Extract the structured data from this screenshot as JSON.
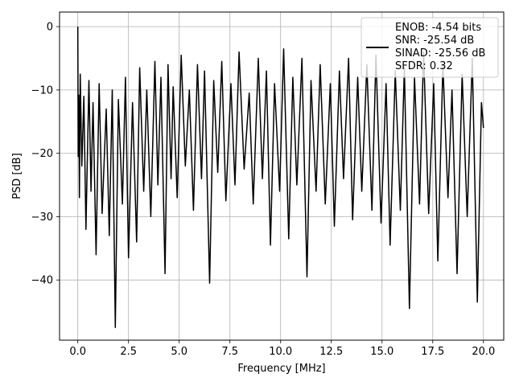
{
  "chart_data": {
    "type": "line",
    "title": "",
    "xlabel": "Frequency [MHz]",
    "ylabel": "PSD [dB]",
    "xlim": [
      -0.9,
      21.0
    ],
    "ylim": [
      -49.5,
      2.3
    ],
    "xticks": [
      0.0,
      2.5,
      5.0,
      7.5,
      10.0,
      12.5,
      15.0,
      17.5,
      20.0
    ],
    "xtick_labels": [
      "0.0",
      "2.5",
      "5.0",
      "7.5",
      "10.0",
      "12.5",
      "15.0",
      "17.5",
      "20.0"
    ],
    "yticks": [
      0,
      -10,
      -20,
      -30,
      -40
    ],
    "ytick_labels": [
      "0",
      "−10",
      "−20",
      "−30",
      "−40"
    ],
    "grid": true,
    "legend_location": "upper right",
    "legend_lines": [
      "ENOB: -4.54 bits",
      "SNR: -25.54 dB",
      "SINAD: -25.56 dB",
      "SFDR: 0.32"
    ],
    "line_color": "#000000",
    "series": [
      {
        "x": [
          0.0,
          0.02,
          0.05,
          0.08,
          0.12,
          0.2,
          0.3,
          0.4,
          0.55,
          0.65,
          0.75,
          0.9,
          1.05,
          1.2,
          1.4,
          1.55,
          1.7,
          1.85,
          2.0,
          2.2,
          2.35,
          2.5,
          2.7,
          2.9,
          3.05,
          3.25,
          3.4,
          3.6,
          3.8,
          3.95,
          4.1,
          4.3,
          4.45,
          4.6,
          4.7,
          4.9,
          5.1,
          5.3,
          5.5,
          5.7,
          5.9,
          6.1,
          6.25,
          6.5,
          6.7,
          6.9,
          7.1,
          7.3,
          7.55,
          7.75,
          7.95,
          8.2,
          8.45,
          8.65,
          8.9,
          9.1,
          9.3,
          9.5,
          9.7,
          9.95,
          10.15,
          10.4,
          10.6,
          10.8,
          11.05,
          11.3,
          11.5,
          11.75,
          11.95,
          12.2,
          12.45,
          12.65,
          12.9,
          13.1,
          13.35,
          13.55,
          13.8,
          14.0,
          14.25,
          14.5,
          14.7,
          14.95,
          15.2,
          15.4,
          15.65,
          15.9,
          16.1,
          16.35,
          16.6,
          16.85,
          17.05,
          17.3,
          17.55,
          17.75,
          18.0,
          18.25,
          18.45,
          18.7,
          18.95,
          19.2,
          19.45,
          19.7,
          19.9,
          20.0
        ],
        "y": [
          0.0,
          -20.5,
          -10.8,
          -27.0,
          -7.5,
          -22.0,
          -11.0,
          -32.0,
          -8.5,
          -26.0,
          -12.0,
          -36.0,
          -9.0,
          -29.5,
          -13.0,
          -33.0,
          -10.0,
          -47.5,
          -11.5,
          -28.0,
          -8.0,
          -36.5,
          -12.0,
          -34.0,
          -6.5,
          -26.0,
          -10.0,
          -30.0,
          -5.5,
          -25.0,
          -8.0,
          -39.0,
          -6.0,
          -24.0,
          -9.5,
          -27.0,
          -4.5,
          -22.0,
          -10.0,
          -29.0,
          -6.0,
          -24.0,
          -7.0,
          -40.5,
          -8.5,
          -23.0,
          -5.5,
          -27.5,
          -9.0,
          -25.0,
          -4.0,
          -22.5,
          -10.5,
          -28.0,
          -5.0,
          -24.0,
          -7.0,
          -34.5,
          -9.0,
          -26.0,
          -3.5,
          -33.5,
          -8.0,
          -25.0,
          -5.0,
          -39.5,
          -8.5,
          -26.0,
          -6.0,
          -28.0,
          -9.0,
          -31.5,
          -7.0,
          -24.0,
          -5.0,
          -30.5,
          -8.0,
          -26.0,
          -6.0,
          -29.0,
          -4.5,
          -31.0,
          -9.0,
          -34.5,
          -7.0,
          -29.0,
          -6.5,
          -44.5,
          -8.0,
          -28.0,
          -4.0,
          -29.5,
          -9.0,
          -37.0,
          -6.0,
          -27.0,
          -10.0,
          -39.0,
          -7.5,
          -30.0,
          -5.0,
          -43.5,
          -12.0,
          -16.0
        ]
      }
    ]
  }
}
